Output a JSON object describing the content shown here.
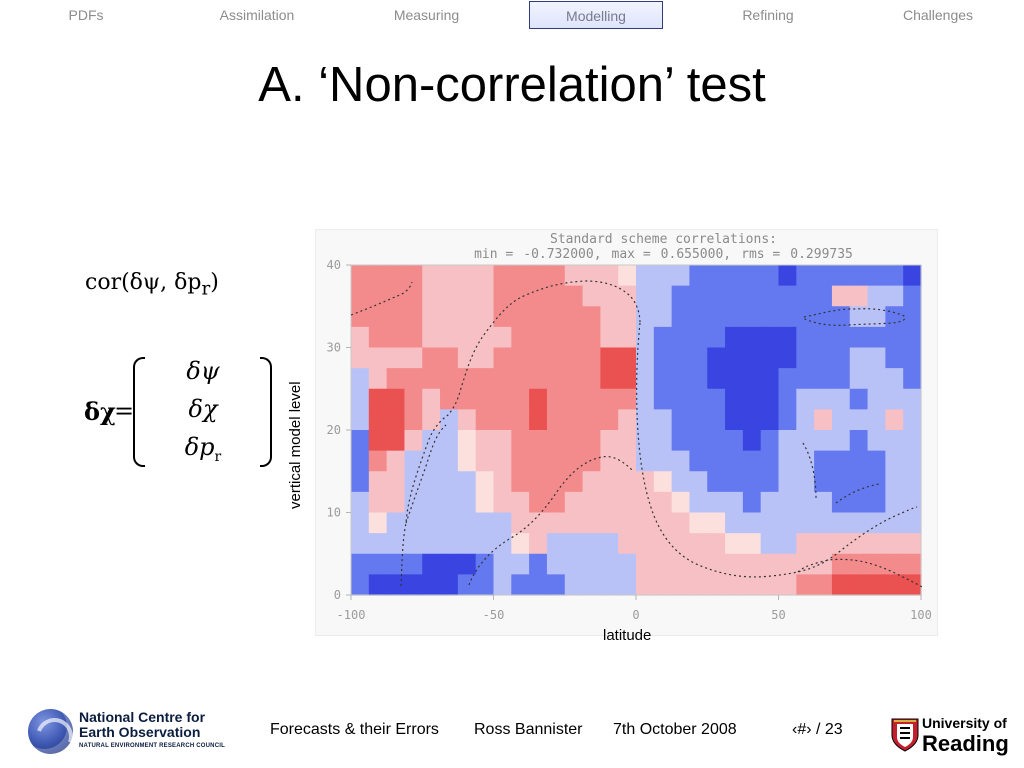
{
  "navigation": {
    "items": [
      {
        "label": "PDFs"
      },
      {
        "label": "Assimilation"
      },
      {
        "label": "Measuring"
      },
      {
        "label": "Modelling"
      },
      {
        "label": "Refining"
      },
      {
        "label": "Challenges"
      }
    ],
    "active_item": "Modelling"
  },
  "slide": {
    "title": "A. ‘Non-correlation’ test",
    "equation_1": "cor(δψ, δp",
    "equation_1_subscript": "r",
    "equation_1_close": ")",
    "equation_2_lhs": "δχ",
    "equation_2_equal": "=",
    "matrix_entries": [
      {
        "main": "δψ",
        "sub": ""
      },
      {
        "main": "δχ",
        "sub": ""
      },
      {
        "main": "δp",
        "sub": "r"
      }
    ]
  },
  "chart": {
    "header_line_1": "Standard scheme correlations:",
    "header_line_2": {
      "min_label": "min =",
      "min_value": "-0.732000,",
      "max_label": "max =",
      "max_value": "0.655000,",
      "rms_label": "rms =",
      "rms_value": "0.299735"
    },
    "x_axis_label": "latitude",
    "y_axis_label": "vertical model level"
  },
  "chart_data": {
    "type": "heatmap",
    "title": "Standard scheme correlations:",
    "subtitle": "min = -0.732000, max = 0.655000, rms = 0.299735",
    "xlabel": "latitude",
    "ylabel": "vertical model level",
    "xlim": [
      -100,
      100
    ],
    "ylim": [
      0,
      40
    ],
    "x_ticks": [
      "-100",
      "-50",
      "0",
      "50",
      "100"
    ],
    "y_ticks": [
      "0",
      "10",
      "20",
      "30",
      "40"
    ],
    "colors": {
      "negative_strong": "#3a44e0",
      "negative_medium": "#6478ef",
      "negative_light": "#b9c2f6",
      "neutral": "#fbe0de",
      "positive_light": "#f7c0c4",
      "positive_medium": "#f38b8c",
      "positive_strong": "#ea5151"
    },
    "columns": 32,
    "rows": 16,
    "values": [
      [
        0.34,
        0.36,
        0.35,
        0.28,
        0.22,
        0.18,
        0.2,
        0.25,
        0.3,
        0.32,
        0.35,
        0.31,
        0.25,
        0.18,
        0.12,
        0.05,
        -0.14,
        -0.22,
        -0.28,
        -0.35,
        -0.42,
        -0.48,
        -0.52,
        -0.55,
        -0.58,
        -0.52,
        -0.45,
        -0.42,
        -0.4,
        -0.38,
        -0.5,
        -0.6
      ],
      [
        0.36,
        0.4,
        0.38,
        0.32,
        0.24,
        0.18,
        0.2,
        0.25,
        0.3,
        0.34,
        0.39,
        0.38,
        0.32,
        0.22,
        0.13,
        0.08,
        -0.2,
        -0.28,
        -0.33,
        -0.38,
        -0.43,
        -0.47,
        -0.48,
        -0.5,
        -0.52,
        -0.48,
        -0.4,
        0.18,
        0.15,
        -0.18,
        -0.25,
        -0.35
      ],
      [
        0.3,
        0.34,
        0.36,
        0.31,
        0.24,
        0.16,
        0.18,
        0.23,
        0.28,
        0.36,
        0.42,
        0.4,
        0.35,
        0.28,
        0.18,
        0.12,
        -0.24,
        -0.31,
        -0.35,
        -0.4,
        -0.46,
        -0.5,
        -0.52,
        -0.54,
        -0.56,
        -0.5,
        -0.42,
        -0.36,
        -0.3,
        -0.28,
        -0.32,
        -0.45
      ],
      [
        0.25,
        0.29,
        0.3,
        0.28,
        0.22,
        0.14,
        0.16,
        0.21,
        0.24,
        0.35,
        0.45,
        0.43,
        0.37,
        0.31,
        0.24,
        0.1,
        -0.28,
        -0.36,
        -0.42,
        -0.48,
        -0.55,
        -0.62,
        -0.65,
        -0.6,
        -0.58,
        -0.52,
        -0.48,
        -0.44,
        -0.42,
        -0.4,
        -0.46,
        -0.5
      ],
      [
        0.15,
        0.18,
        0.22,
        0.26,
        0.3,
        0.35,
        0.22,
        0.25,
        0.32,
        0.36,
        0.42,
        0.41,
        0.4,
        0.39,
        0.52,
        0.58,
        -0.3,
        -0.36,
        -0.4,
        -0.48,
        -0.6,
        -0.7,
        -0.72,
        -0.65,
        -0.58,
        -0.5,
        -0.42,
        -0.36,
        -0.3,
        -0.26,
        -0.32,
        -0.36
      ],
      [
        -0.1,
        0.24,
        0.4,
        0.33,
        0.35,
        0.4,
        0.42,
        0.38,
        0.35,
        0.34,
        0.38,
        0.45,
        0.42,
        0.3,
        0.58,
        0.61,
        -0.28,
        -0.34,
        -0.38,
        -0.46,
        -0.58,
        -0.7,
        -0.68,
        -0.62,
        -0.52,
        -0.44,
        -0.38,
        -0.32,
        -0.28,
        -0.26,
        -0.3,
        -0.34
      ],
      [
        -0.12,
        0.56,
        0.62,
        0.35,
        0.25,
        0.3,
        0.36,
        0.38,
        0.42,
        0.46,
        0.5,
        0.46,
        0.4,
        0.35,
        0.45,
        0.4,
        -0.24,
        -0.32,
        -0.36,
        -0.46,
        -0.56,
        -0.66,
        -0.64,
        -0.6,
        -0.42,
        -0.12,
        -0.24,
        -0.28,
        -0.34,
        -0.26,
        -0.18,
        -0.26
      ],
      [
        -0.3,
        0.6,
        0.65,
        0.3,
        0.12,
        -0.1,
        0.25,
        0.32,
        0.38,
        0.45,
        0.51,
        0.47,
        0.39,
        0.3,
        0.28,
        0.25,
        -0.2,
        -0.28,
        -0.34,
        -0.44,
        -0.52,
        -0.6,
        -0.65,
        -0.58,
        -0.36,
        -0.16,
        0.12,
        -0.18,
        -0.28,
        -0.14,
        0.1,
        -0.12
      ],
      [
        -0.4,
        0.58,
        0.5,
        0.18,
        -0.18,
        -0.22,
        -0.05,
        0.1,
        0.24,
        0.36,
        0.46,
        0.44,
        0.37,
        0.3,
        0.24,
        0.18,
        -0.16,
        -0.24,
        -0.32,
        -0.4,
        -0.48,
        -0.55,
        -0.6,
        -0.54,
        -0.28,
        -0.12,
        -0.25,
        -0.3,
        -0.35,
        -0.28,
        -0.18,
        -0.1
      ],
      [
        -0.42,
        0.4,
        0.25,
        -0.1,
        -0.24,
        -0.28,
        -0.08,
        0.12,
        0.22,
        0.32,
        0.4,
        0.45,
        0.36,
        0.28,
        0.22,
        0.15,
        -0.12,
        -0.2,
        -0.28,
        -0.36,
        -0.44,
        -0.5,
        -0.54,
        -0.48,
        -0.2,
        -0.26,
        -0.35,
        -0.38,
        -0.4,
        -0.32,
        -0.24,
        -0.16
      ],
      [
        -0.36,
        0.18,
        0.1,
        -0.16,
        -0.3,
        -0.22,
        -0.12,
        0.06,
        0.18,
        0.28,
        0.38,
        0.42,
        0.3,
        0.22,
        0.18,
        0.12,
        0.1,
        -0.08,
        -0.18,
        -0.28,
        -0.34,
        -0.4,
        -0.44,
        -0.36,
        -0.2,
        -0.28,
        -0.34,
        -0.38,
        -0.4,
        -0.38,
        -0.3,
        -0.24
      ],
      [
        -0.3,
        0.1,
        0.12,
        -0.12,
        -0.22,
        -0.26,
        -0.18,
        0.02,
        0.1,
        0.22,
        0.3,
        0.34,
        0.26,
        0.2,
        0.16,
        0.12,
        0.1,
        0.1,
        0.05,
        -0.1,
        -0.2,
        -0.28,
        -0.32,
        -0.24,
        -0.18,
        -0.24,
        -0.3,
        -0.36,
        -0.38,
        -0.36,
        -0.3,
        -0.28
      ],
      [
        -0.24,
        -0.08,
        -0.1,
        -0.18,
        -0.22,
        -0.24,
        -0.26,
        -0.2,
        -0.1,
        0.2,
        0.18,
        0.14,
        0.18,
        0.16,
        0.1,
        0.1,
        0.08,
        0.08,
        0.08,
        0.06,
        -0.06,
        -0.12,
        -0.18,
        -0.1,
        -0.14,
        -0.22,
        -0.26,
        -0.28,
        -0.3,
        -0.28,
        -0.24,
        -0.22
      ],
      [
        -0.2,
        -0.14,
        -0.16,
        -0.18,
        -0.2,
        -0.18,
        -0.16,
        -0.14,
        -0.12,
        -0.08,
        0.12,
        -0.1,
        -0.12,
        -0.14,
        -0.16,
        0.08,
        0.08,
        0.08,
        0.08,
        0.08,
        0.08,
        0.06,
        0.02,
        -0.12,
        -0.18,
        0.1,
        0.12,
        0.18,
        0.16,
        0.1,
        0.12,
        0.14
      ],
      [
        -0.44,
        -0.48,
        -0.52,
        -0.56,
        -0.58,
        -0.6,
        -0.64,
        -0.46,
        -0.18,
        -0.12,
        -0.36,
        -0.22,
        -0.28,
        -0.3,
        -0.24,
        -0.16,
        0.08,
        0.08,
        0.08,
        0.08,
        0.08,
        0.08,
        0.08,
        0.08,
        0.1,
        0.18,
        0.26,
        0.36,
        0.42,
        0.46,
        0.32,
        0.28
      ],
      [
        -0.56,
        -0.6,
        -0.62,
        -0.66,
        -0.64,
        -0.58,
        -0.54,
        -0.5,
        -0.3,
        -0.42,
        -0.46,
        -0.34,
        -0.28,
        -0.22,
        -0.16,
        -0.12,
        0.08,
        0.08,
        0.08,
        0.08,
        0.08,
        0.08,
        0.08,
        0.12,
        0.2,
        0.3,
        0.46,
        0.52,
        0.56,
        0.6,
        0.58,
        0.62
      ]
    ]
  },
  "footer": {
    "institution_1": "National Centre for",
    "institution_2": "Earth Observation",
    "institution_3": "NATURAL ENVIRONMENT RESEARCH COUNCIL",
    "presentation_title": "Forecasts & their Errors",
    "author": "Ross Bannister",
    "date": "7th October 2008",
    "page_indicator": "‹#› / 23",
    "university_line_1": "University of",
    "university_line_2": "Reading"
  }
}
